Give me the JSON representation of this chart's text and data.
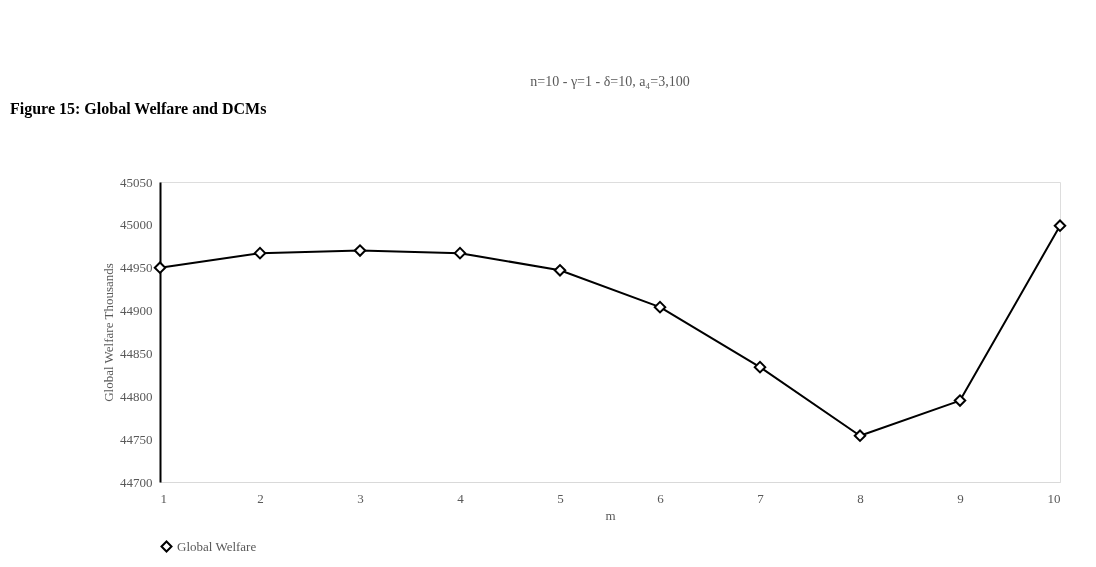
{
  "chart_data": {
    "type": "line",
    "title": "n=10 - γ=1 - δ=10, a₄=3,100",
    "xlabel": "m",
    "ylabel": "Global Welfare Thousands",
    "annotations": [
      "Figure 15: Global Welfare and DCMs"
    ],
    "categories": [
      "1",
      "2",
      "3",
      "4",
      "5",
      "6",
      "7",
      "8",
      "9",
      "10"
    ],
    "series": [
      {
        "name": "Global Welfare",
        "color": "#000000",
        "values": [
          44950,
          44967,
          44970,
          44967,
          44947,
          44904,
          44834,
          44754,
          44795,
          44999
        ]
      }
    ],
    "ylim": [
      44700,
      45050
    ],
    "yticks": [
      44700,
      44750,
      44800,
      44850,
      44900,
      44950,
      45000,
      45050
    ],
    "grid": false,
    "legend": "bottom",
    "marker": "diamond",
    "line_style": "solid"
  }
}
